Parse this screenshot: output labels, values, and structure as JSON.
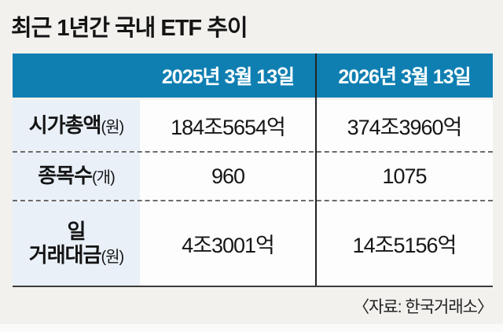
{
  "page": {
    "title": "최근 1년간 국내 ETF 추이",
    "source_note": "〈자료: 한국거래소〉"
  },
  "table": {
    "column_headers": [
      "2025년 3월 13일",
      "2026년 3월 13일"
    ],
    "rows": [
      {
        "label": "시가총액",
        "unit": "(원)",
        "values": [
          "184조5654억",
          "374조3960억"
        ]
      },
      {
        "label": "종목수",
        "unit": "(개)",
        "values": [
          "960",
          "1075"
        ]
      },
      {
        "label_line1": "일",
        "label": "거래대금",
        "unit": "(원)",
        "values": [
          "4조3001억",
          "14조5156억"
        ]
      }
    ]
  },
  "colors": {
    "page_bg": "#f2f1ee",
    "header_bg": "#0f7fb2",
    "header_text": "#ffffff",
    "label_cell_bg": "#e9f0f8",
    "cell_bg": "#fdfdfd",
    "text": "#141414",
    "divider": "#222222"
  },
  "chart_data": {
    "type": "table",
    "title": "최근 1년간 국내 ETF 추이",
    "columns": [
      "",
      "2025년 3월 13일",
      "2026년 3월 13일"
    ],
    "rows": [
      [
        "시가총액(원)",
        "184조5654억",
        "374조3960억"
      ],
      [
        "종목수(개)",
        "960",
        "1075"
      ],
      [
        "일 거래대금(원)",
        "4조3001억",
        "14조5156억"
      ]
    ],
    "source": "자료: 한국거래소",
    "layout": {
      "header_position": "top",
      "grid": "dashed-row-dividers",
      "legend": "none"
    }
  }
}
